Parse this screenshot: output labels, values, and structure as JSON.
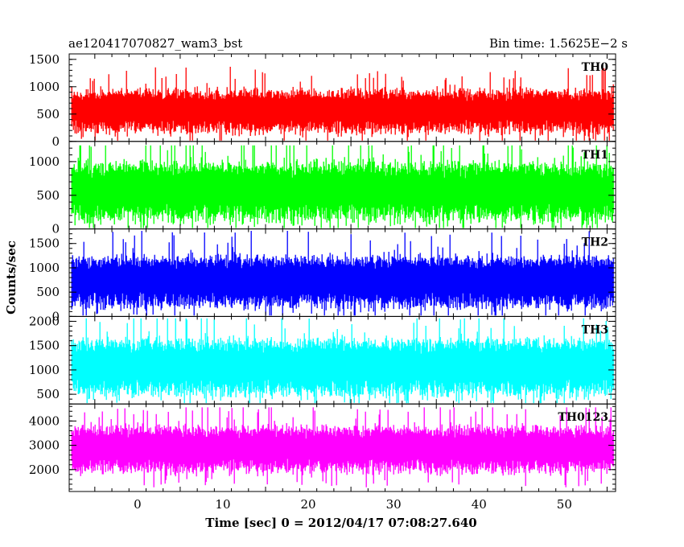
{
  "header": {
    "title": "ae120417070827_wam3_bst",
    "bin_time": "Bin time: 1.5625E−2 s"
  },
  "chart_data": {
    "type": "line",
    "xlabel": "Time [sec] 0 = 2012/04/17 07:08:27.640",
    "ylabel": "Counts/sec",
    "xlim": [
      -8,
      56
    ],
    "x_range_data": [
      -7.7,
      55.8
    ],
    "x_ticks": [
      0,
      10,
      20,
      30,
      40,
      50
    ],
    "panels": [
      {
        "name": "TH0",
        "color": "#ff0000",
        "ylim": [
          0,
          1600
        ],
        "y_ticks": [
          0,
          500,
          1000,
          1500
        ],
        "center": 560,
        "spread": 420,
        "peak": 1580
      },
      {
        "name": "TH1",
        "color": "#00ff00",
        "ylim": [
          0,
          1300
        ],
        "y_ticks": [
          0,
          500,
          1000
        ],
        "center": 560,
        "spread": 460,
        "peak": 1240
      },
      {
        "name": "TH2",
        "color": "#0000ff",
        "ylim": [
          0,
          1800
        ],
        "y_ticks": [
          0,
          500,
          1000,
          1500
        ],
        "center": 720,
        "spread": 560,
        "peak": 1760
      },
      {
        "name": "TH3",
        "color": "#00ffff",
        "ylim": [
          300,
          2100
        ],
        "y_ticks": [
          500,
          1000,
          1500,
          2000
        ],
        "center": 1060,
        "spread": 620,
        "peak": 2060
      },
      {
        "name": "TH0123",
        "color": "#ff00ff",
        "ylim": [
          1100,
          4700
        ],
        "y_ticks": [
          2000,
          3000,
          4000
        ],
        "center": 2850,
        "spread": 1000,
        "peak": 4560
      }
    ]
  }
}
